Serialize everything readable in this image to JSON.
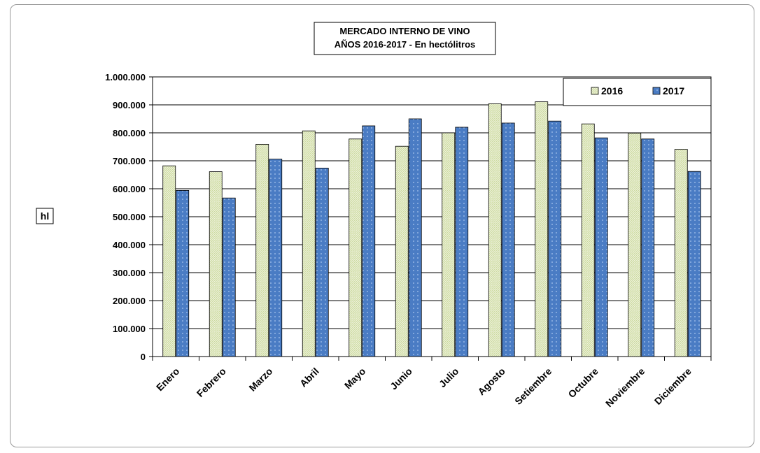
{
  "chart_data": {
    "type": "bar",
    "title_line1": "MERCADO INTERNO DE VINO",
    "title_line2": "AÑOS 2016-2017 -  En hectólitros",
    "ylabel": "hl",
    "xlabel": "",
    "ylim": [
      0,
      1000000
    ],
    "ytick_step": 100000,
    "ytick_labels": [
      "0",
      "100.000",
      "200.000",
      "300.000",
      "400.000",
      "500.000",
      "600.000",
      "700.000",
      "800.000",
      "900.000",
      "1.000.000"
    ],
    "grid": true,
    "legend_position": "top-right",
    "categories": [
      "Enero",
      "Febrero",
      "Marzo",
      "Abril",
      "Mayo",
      "Junio",
      "Julio",
      "Agosto",
      "Setiembre",
      "Octubre",
      "Noviembre",
      "Diciembre"
    ],
    "series": [
      {
        "name": "2016",
        "color": "#eef2dc",
        "pattern_color": "#c9d89a",
        "values": [
          682000,
          661000,
          759000,
          807000,
          778000,
          752000,
          800000,
          904000,
          911000,
          832000,
          799000,
          741000
        ]
      },
      {
        "name": "2017",
        "color": "#4a7cc4",
        "pattern_color": "#9dbde8",
        "values": [
          594000,
          567000,
          706000,
          674000,
          825000,
          850000,
          820000,
          835000,
          842000,
          782000,
          778000,
          662000
        ]
      }
    ]
  }
}
